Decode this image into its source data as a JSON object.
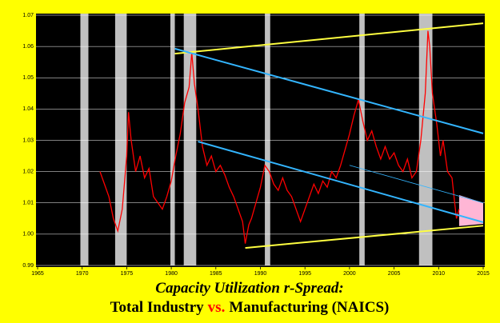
{
  "chart_data": {
    "type": "line",
    "title": "Capacity Utilization r-Spread:",
    "subtitle": [
      "Total Industry",
      "vs.",
      "Manufacturing (NAICS)"
    ],
    "subtitle_colors": [
      "#000000",
      "#ff0000",
      "#000000"
    ],
    "background": "#ffff00",
    "plot_background": "#000000",
    "grid": true,
    "xlim": [
      1965,
      2015
    ],
    "xticks": [
      1965,
      1970,
      1975,
      1980,
      1985,
      1990,
      1995,
      2000,
      2005,
      2010,
      2015
    ],
    "ylim": [
      0.99,
      1.07
    ],
    "yticks": [
      0.99,
      {
        "value": 1,
        "label": "1.00"
      },
      1.01,
      1.02,
      1.03,
      1.04,
      1.05,
      1.06,
      1.07
    ],
    "shaded_periods": {
      "color": "#c0c0c0",
      "ranges": [
        [
          1969.8,
          1970.7
        ],
        [
          1973.7,
          1975.0
        ],
        [
          1979.9,
          1980.4
        ],
        [
          1981.4,
          1982.8
        ],
        [
          1990.5,
          1991.1
        ],
        [
          2001.1,
          2001.7
        ],
        [
          2007.8,
          2009.3
        ]
      ]
    },
    "series": [
      {
        "color": "#ff0000",
        "x": [
          1972.0,
          1972.5,
          1973.0,
          1973.5,
          1974.0,
          1974.5,
          1975.0,
          1975.2,
          1975.5,
          1976.0,
          1976.5,
          1977.0,
          1977.5,
          1978.0,
          1978.5,
          1979.0,
          1979.5,
          1980.0,
          1980.5,
          1981.0,
          1981.5,
          1982.0,
          1982.3,
          1982.6,
          1983.0,
          1983.5,
          1984.0,
          1984.5,
          1985.0,
          1985.5,
          1986.0,
          1986.5,
          1987.0,
          1987.5,
          1988.0,
          1988.3,
          1988.7,
          1989.0,
          1989.5,
          1990.0,
          1990.5,
          1991.0,
          1991.5,
          1992.0,
          1992.5,
          1993.0,
          1993.5,
          1994.0,
          1994.5,
          1995.0,
          1995.5,
          1996.0,
          1996.5,
          1997.0,
          1997.5,
          1998.0,
          1998.5,
          1999.0,
          1999.5,
          2000.0,
          2000.5,
          2001.0,
          2001.5,
          2002.0,
          2002.5,
          2003.0,
          2003.5,
          2004.0,
          2004.5,
          2005.0,
          2005.5,
          2006.0,
          2006.5,
          2007.0,
          2007.5,
          2008.0,
          2008.5,
          2008.8,
          2009.0,
          2009.3,
          2009.8,
          2010.2,
          2010.5,
          2011.0,
          2011.5,
          2011.8,
          2012.0,
          2012.3
        ],
        "values": [
          1.02,
          1.016,
          1.012,
          1.005,
          1.001,
          1.008,
          1.025,
          1.039,
          1.03,
          1.02,
          1.025,
          1.018,
          1.021,
          1.012,
          1.01,
          1.008,
          1.012,
          1.017,
          1.025,
          1.032,
          1.042,
          1.047,
          1.058,
          1.048,
          1.04,
          1.028,
          1.022,
          1.025,
          1.02,
          1.022,
          1.019,
          1.015,
          1.012,
          1.008,
          1.004,
          0.997,
          1.003,
          1.005,
          1.01,
          1.015,
          1.022,
          1.02,
          1.016,
          1.014,
          1.018,
          1.014,
          1.012,
          1.008,
          1.004,
          1.008,
          1.012,
          1.016,
          1.013,
          1.017,
          1.015,
          1.02,
          1.018,
          1.022,
          1.027,
          1.032,
          1.038,
          1.043,
          1.036,
          1.03,
          1.033,
          1.028,
          1.024,
          1.028,
          1.024,
          1.026,
          1.022,
          1.02,
          1.024,
          1.018,
          1.02,
          1.03,
          1.045,
          1.065,
          1.06,
          1.045,
          1.035,
          1.025,
          1.03,
          1.02,
          1.018,
          1.01,
          1.005,
          1.008
        ]
      }
    ],
    "trend_lines": [
      {
        "color": "#ffff40",
        "width": 2,
        "x": [
          1980.4,
          2015
        ],
        "values": [
          1.0577,
          1.0674
        ]
      },
      {
        "color": "#33b5ff",
        "width": 2,
        "x": [
          1980.4,
          2015
        ],
        "values": [
          1.0593,
          1.0322
        ]
      },
      {
        "color": "#33b5ff",
        "width": 2,
        "x": [
          1983.0,
          2015
        ],
        "values": [
          1.0296,
          1.0038
        ]
      },
      {
        "color": "#33b5ff",
        "width": 0.8,
        "x": [
          2000.0,
          2015
        ],
        "values": [
          1.022,
          1.01
        ]
      },
      {
        "color": "#ffff40",
        "width": 2,
        "x": [
          1988.3,
          2015
        ],
        "values": [
          0.9956,
          1.0027
        ]
      }
    ],
    "forecast_band": {
      "color": "#ffb6d5",
      "x": [
        2012.3,
        2015
      ],
      "upper": [
        1.0125,
        1.01
      ],
      "lower": [
        1.0026,
        1.0033
      ]
    }
  }
}
